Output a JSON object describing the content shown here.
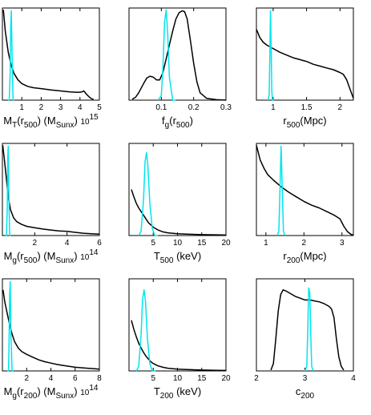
{
  "colors": {
    "posterior": "#000000",
    "input": "#00e5ee"
  },
  "chart_data": [
    {
      "id": "p1",
      "type": "line",
      "xlim": [
        0,
        5
      ],
      "ylim": [
        0,
        1
      ],
      "xticks": [
        1,
        2,
        3,
        4,
        5
      ],
      "tick_labels": [
        "1",
        "2",
        "3",
        "4",
        "5"
      ],
      "xlabel_parts": [
        {
          "t": "M",
          "sub": false
        },
        {
          "t": "T",
          "sub": true
        },
        {
          "t": "(r",
          "sub": false
        },
        {
          "t": "500",
          "sub": true
        },
        {
          "t": ") (M",
          "sub": false
        },
        {
          "t": "Sunx",
          "sub": true
        },
        {
          "t": ") ",
          "sub": false
        },
        {
          "t": "10",
          "small": true
        },
        {
          "t": "15",
          "sup": true
        }
      ],
      "series": [
        {
          "color": "#000000",
          "x": [
            0.05,
            0.15,
            0.3,
            0.45,
            0.6,
            0.8,
            1.0,
            1.3,
            1.6,
            2.0,
            2.5,
            3.0,
            3.5,
            3.9,
            4.1,
            4.2,
            4.35,
            4.5,
            4.6,
            4.7
          ],
          "y": [
            0.98,
            0.75,
            0.52,
            0.38,
            0.29,
            0.22,
            0.18,
            0.15,
            0.135,
            0.125,
            0.11,
            0.1,
            0.09,
            0.085,
            0.09,
            0.1,
            0.06,
            0.03,
            0.015,
            0.01
          ]
        },
        {
          "color": "#00e5ee",
          "x": [
            0.3,
            0.35,
            0.4,
            0.43,
            0.46,
            0.5,
            0.55,
            0.6
          ],
          "y": [
            0,
            0,
            0.3,
            0.8,
            0.97,
            0.5,
            0,
            0
          ]
        }
      ]
    },
    {
      "id": "p2",
      "type": "line",
      "xlim": [
        0,
        0.3
      ],
      "ylim": [
        0,
        1
      ],
      "xticks": [
        0.1,
        0.2,
        0.3
      ],
      "tick_labels": [
        "0.1",
        "0.2",
        "0.3"
      ],
      "xlabel_parts": [
        {
          "t": "f",
          "sub": false
        },
        {
          "t": "g",
          "sub": true
        },
        {
          "t": "(r",
          "sub": false
        },
        {
          "t": "500",
          "sub": true
        },
        {
          "t": ")",
          "sub": false
        }
      ],
      "series": [
        {
          "color": "#000000",
          "x": [
            0.01,
            0.02,
            0.03,
            0.045,
            0.055,
            0.065,
            0.075,
            0.085,
            0.095,
            0.105,
            0.115,
            0.125,
            0.135,
            0.145,
            0.155,
            0.165,
            0.172,
            0.18,
            0.19,
            0.2,
            0.21,
            0.22,
            0.24,
            0.27,
            0.3
          ],
          "y": [
            0.01,
            0.03,
            0.08,
            0.18,
            0.24,
            0.26,
            0.25,
            0.22,
            0.22,
            0.3,
            0.45,
            0.6,
            0.75,
            0.88,
            0.95,
            0.97,
            0.96,
            0.88,
            0.65,
            0.4,
            0.2,
            0.08,
            0.02,
            0.005,
            0.0
          ]
        },
        {
          "color": "#00e5ee",
          "x": [
            0.09,
            0.1,
            0.105,
            0.11,
            0.115,
            0.12,
            0.125,
            0.135,
            0.145
          ],
          "y": [
            0,
            0.05,
            0.35,
            0.85,
            0.98,
            0.7,
            0.25,
            0,
            0
          ]
        }
      ]
    },
    {
      "id": "p3",
      "type": "line",
      "xlim": [
        0.75,
        2.2
      ],
      "ylim": [
        0,
        1
      ],
      "xticks": [
        1.0,
        1.5,
        2.0
      ],
      "tick_labels": [
        "1",
        "1.5",
        "2"
      ],
      "xlabel_parts": [
        {
          "t": "r",
          "sub": false
        },
        {
          "t": "500",
          "sub": true
        },
        {
          "t": "(Mpc)",
          "sub": false
        }
      ],
      "series": [
        {
          "color": "#000000",
          "x": [
            0.75,
            0.8,
            0.85,
            0.9,
            1.0,
            1.1,
            1.2,
            1.3,
            1.4,
            1.5,
            1.6,
            1.7,
            1.8,
            1.9,
            2.0,
            2.05,
            2.1,
            2.15,
            2.2
          ],
          "y": [
            0.77,
            0.68,
            0.63,
            0.6,
            0.56,
            0.52,
            0.49,
            0.46,
            0.44,
            0.42,
            0.39,
            0.37,
            0.35,
            0.33,
            0.3,
            0.28,
            0.22,
            0.12,
            0.02
          ]
        },
        {
          "color": "#00e5ee",
          "x": [
            0.92,
            0.94,
            0.95,
            0.96,
            0.97,
            0.98,
            0.99,
            1.01
          ],
          "y": [
            0,
            0.05,
            0.45,
            0.97,
            0.6,
            0.1,
            0,
            0
          ]
        }
      ]
    },
    {
      "id": "p4",
      "type": "line",
      "xlim": [
        0,
        6
      ],
      "ylim": [
        0,
        1
      ],
      "xticks": [
        2,
        4,
        6
      ],
      "tick_labels": [
        "2",
        "4",
        "6"
      ],
      "xlabel_parts": [
        {
          "t": "M",
          "sub": false
        },
        {
          "t": "g",
          "sub": true
        },
        {
          "t": "(r",
          "sub": false
        },
        {
          "t": "500",
          "sub": true
        },
        {
          "t": ") (M",
          "sub": false
        },
        {
          "t": "Sunx",
          "sub": true
        },
        {
          "t": ") ",
          "sub": false
        },
        {
          "t": "10",
          "small": true
        },
        {
          "t": "14",
          "sup": true
        }
      ],
      "series": [
        {
          "color": "#000000",
          "x": [
            0.02,
            0.1,
            0.2,
            0.3,
            0.4,
            0.5,
            0.7,
            0.9,
            1.2,
            1.5,
            2.0,
            2.5,
            3.0,
            3.5,
            4.0,
            4.5,
            5.0,
            5.5,
            6.0
          ],
          "y": [
            0.98,
            0.86,
            0.7,
            0.52,
            0.38,
            0.28,
            0.19,
            0.15,
            0.12,
            0.1,
            0.085,
            0.07,
            0.06,
            0.05,
            0.045,
            0.035,
            0.025,
            0.02,
            0.015
          ]
        },
        {
          "color": "#00e5ee",
          "x": [
            0.2,
            0.25,
            0.3,
            0.33,
            0.36,
            0.4,
            0.45,
            0.5
          ],
          "y": [
            0,
            0,
            0.3,
            0.85,
            0.97,
            0.4,
            0,
            0
          ]
        }
      ]
    },
    {
      "id": "p5",
      "type": "line",
      "xlim": [
        0,
        20
      ],
      "ylim": [
        0,
        1
      ],
      "xticks": [
        5,
        10,
        15,
        20
      ],
      "tick_labels": [
        "5",
        "10",
        "15",
        "20"
      ],
      "xlabel_parts": [
        {
          "t": "T",
          "sub": false
        },
        {
          "t": "500",
          "sub": true
        },
        {
          "t": " (keV)",
          "sub": false
        }
      ],
      "series": [
        {
          "color": "#000000",
          "x": [
            0.5,
            1.0,
            1.5,
            2.0,
            2.5,
            3.0,
            3.5,
            4.0,
            5.0,
            6.0,
            7.0,
            8.0,
            10.0,
            12.0,
            15.0,
            18.0,
            20.0
          ],
          "y": [
            0.5,
            0.42,
            0.35,
            0.3,
            0.26,
            0.22,
            0.18,
            0.14,
            0.09,
            0.06,
            0.04,
            0.03,
            0.02,
            0.015,
            0.01,
            0.008,
            0.005
          ]
        },
        {
          "color": "#00e5ee",
          "x": [
            2.0,
            2.5,
            3.0,
            3.3,
            3.6,
            3.9,
            4.3,
            4.8,
            5.3,
            6.0
          ],
          "y": [
            0,
            0.05,
            0.4,
            0.8,
            0.9,
            0.75,
            0.35,
            0.08,
            0,
            0
          ]
        }
      ]
    },
    {
      "id": "p6",
      "type": "line",
      "xlim": [
        0.75,
        3.3
      ],
      "ylim": [
        0,
        1
      ],
      "xticks": [
        1,
        2,
        3
      ],
      "tick_labels": [
        "1",
        "2",
        "3"
      ],
      "xlabel_parts": [
        {
          "t": "r",
          "sub": false
        },
        {
          "t": "200",
          "sub": true
        },
        {
          "t": "(Mpc)",
          "sub": false
        }
      ],
      "series": [
        {
          "color": "#000000",
          "x": [
            0.75,
            0.85,
            0.95,
            1.05,
            1.2,
            1.4,
            1.6,
            1.8,
            2.0,
            2.2,
            2.4,
            2.6,
            2.8,
            2.95,
            3.05,
            3.15,
            3.25,
            3.3
          ],
          "y": [
            0.98,
            0.82,
            0.73,
            0.66,
            0.6,
            0.53,
            0.47,
            0.42,
            0.37,
            0.33,
            0.3,
            0.26,
            0.22,
            0.18,
            0.1,
            0.04,
            0.01,
            0.005
          ]
        },
        {
          "color": "#00e5ee",
          "x": [
            1.3,
            1.34,
            1.37,
            1.4,
            1.43,
            1.46,
            1.5
          ],
          "y": [
            0,
            0.05,
            0.5,
            0.97,
            0.5,
            0.05,
            0
          ]
        }
      ]
    },
    {
      "id": "p7",
      "type": "line",
      "xlim": [
        0,
        8
      ],
      "ylim": [
        0,
        1
      ],
      "xticks": [
        2,
        4,
        6,
        8
      ],
      "tick_labels": [
        "2",
        "4",
        "6",
        "8"
      ],
      "xlabel_parts": [
        {
          "t": "M",
          "sub": false
        },
        {
          "t": "g",
          "sub": true
        },
        {
          "t": "(r",
          "sub": false
        },
        {
          "t": "200",
          "sub": true
        },
        {
          "t": ") (M",
          "sub": false
        },
        {
          "t": "Sunx",
          "sub": true
        },
        {
          "t": ") ",
          "sub": false
        },
        {
          "t": "10",
          "small": true
        },
        {
          "t": "14",
          "sup": true
        }
      ],
      "series": [
        {
          "color": "#000000",
          "x": [
            0.05,
            0.2,
            0.4,
            0.6,
            0.8,
            1.0,
            1.3,
            1.6,
            2.0,
            2.5,
            3.0,
            3.5,
            4.0,
            4.5,
            5.0,
            5.5,
            6.0,
            6.5,
            7.0,
            7.5,
            8.0
          ],
          "y": [
            0.88,
            0.75,
            0.62,
            0.5,
            0.4,
            0.32,
            0.25,
            0.21,
            0.18,
            0.15,
            0.12,
            0.1,
            0.085,
            0.07,
            0.06,
            0.05,
            0.04,
            0.035,
            0.03,
            0.025,
            0.02
          ]
        },
        {
          "color": "#00e5ee",
          "x": [
            0.4,
            0.5,
            0.55,
            0.6,
            0.65,
            0.7,
            0.8,
            0.9
          ],
          "y": [
            0,
            0,
            0.3,
            0.85,
            0.97,
            0.4,
            0,
            0
          ]
        }
      ]
    },
    {
      "id": "p8",
      "type": "line",
      "xlim": [
        0,
        20
      ],
      "ylim": [
        0,
        1
      ],
      "xticks": [
        5,
        10,
        15,
        20
      ],
      "tick_labels": [
        "5",
        "10",
        "15",
        "20"
      ],
      "xlabel_parts": [
        {
          "t": "T",
          "sub": false
        },
        {
          "t": "200",
          "sub": true
        },
        {
          "t": " (keV)",
          "sub": false
        }
      ],
      "series": [
        {
          "color": "#000000",
          "x": [
            0.5,
            1.0,
            1.5,
            2.0,
            2.5,
            3.0,
            3.5,
            4.0,
            4.5,
            5.0,
            6.0,
            7.0,
            8.0,
            10.0,
            12.0,
            15.0,
            18.0,
            20.0
          ],
          "y": [
            0.55,
            0.45,
            0.37,
            0.3,
            0.25,
            0.2,
            0.16,
            0.13,
            0.1,
            0.08,
            0.055,
            0.04,
            0.03,
            0.02,
            0.015,
            0.01,
            0.007,
            0.005
          ]
        },
        {
          "color": "#00e5ee",
          "x": [
            1.5,
            2.0,
            2.5,
            2.8,
            3.1,
            3.4,
            3.8,
            4.3,
            4.8,
            5.5
          ],
          "y": [
            0,
            0.05,
            0.4,
            0.78,
            0.88,
            0.75,
            0.35,
            0.08,
            0,
            0
          ]
        }
      ]
    },
    {
      "id": "p9",
      "type": "line",
      "xlim": [
        2,
        4
      ],
      "ylim": [
        0,
        1
      ],
      "xticks": [
        2,
        3,
        4
      ],
      "tick_labels": [
        "2",
        "3",
        "4"
      ],
      "xlabel_parts": [
        {
          "t": "c",
          "sub": false
        },
        {
          "t": "200",
          "sub": true
        }
      ],
      "series": [
        {
          "color": "#000000",
          "x": [
            2.3,
            2.35,
            2.4,
            2.45,
            2.5,
            2.55,
            2.6,
            2.7,
            2.8,
            2.9,
            3.0,
            3.1,
            3.2,
            3.3,
            3.4,
            3.5,
            3.55,
            3.6,
            3.65,
            3.7,
            3.75,
            3.8
          ],
          "y": [
            0.01,
            0.08,
            0.35,
            0.65,
            0.83,
            0.88,
            0.87,
            0.84,
            0.81,
            0.79,
            0.77,
            0.77,
            0.76,
            0.75,
            0.73,
            0.7,
            0.67,
            0.58,
            0.35,
            0.15,
            0.05,
            0.01
          ]
        },
        {
          "color": "#00e5ee",
          "x": [
            3.0,
            3.04,
            3.06,
            3.08,
            3.1,
            3.12,
            3.14,
            3.17
          ],
          "y": [
            0,
            0.05,
            0.45,
            0.9,
            0.85,
            0.4,
            0.05,
            0
          ]
        }
      ]
    }
  ]
}
